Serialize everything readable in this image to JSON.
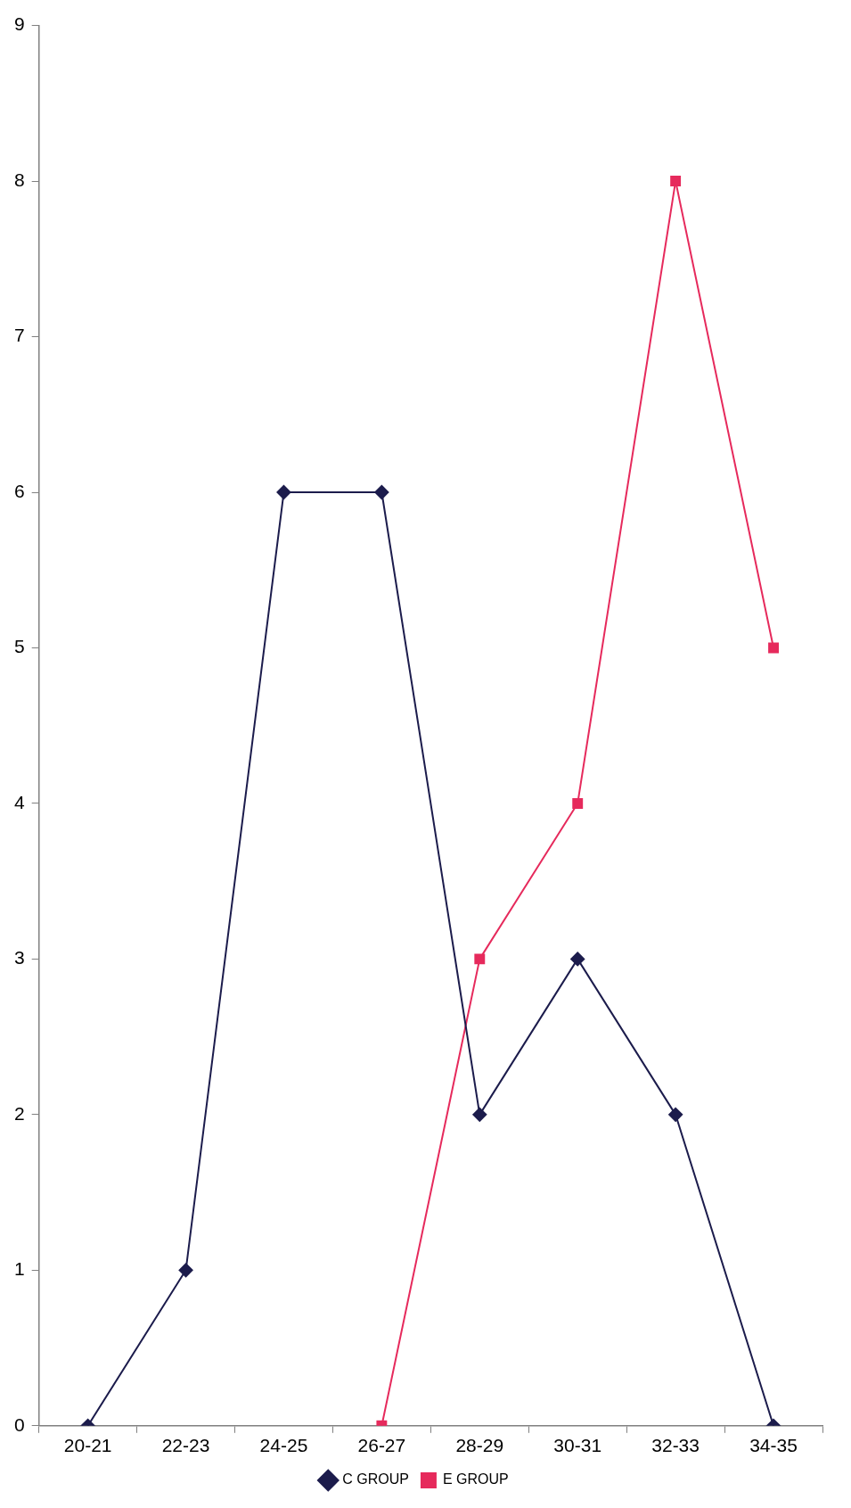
{
  "chart_data": {
    "type": "line",
    "categories": [
      "20-21",
      "22-23",
      "24-25",
      "26-27",
      "28-29",
      "30-31",
      "32-33",
      "34-35"
    ],
    "series": [
      {
        "name": "C GROUP",
        "color": "#1c1c4c",
        "marker": "diamond",
        "values": [
          0,
          1,
          6,
          6,
          2,
          3,
          2,
          0
        ]
      },
      {
        "name": "E GROUP",
        "color": "#e62a5c",
        "marker": "square",
        "values": [
          null,
          null,
          null,
          0,
          3,
          4,
          8,
          5
        ]
      }
    ],
    "ylim": [
      0,
      9
    ],
    "yticks": [
      0,
      1,
      2,
      3,
      4,
      5,
      6,
      7,
      8,
      9
    ],
    "grid": false,
    "legend": "bottom",
    "line_style": "solid"
  }
}
